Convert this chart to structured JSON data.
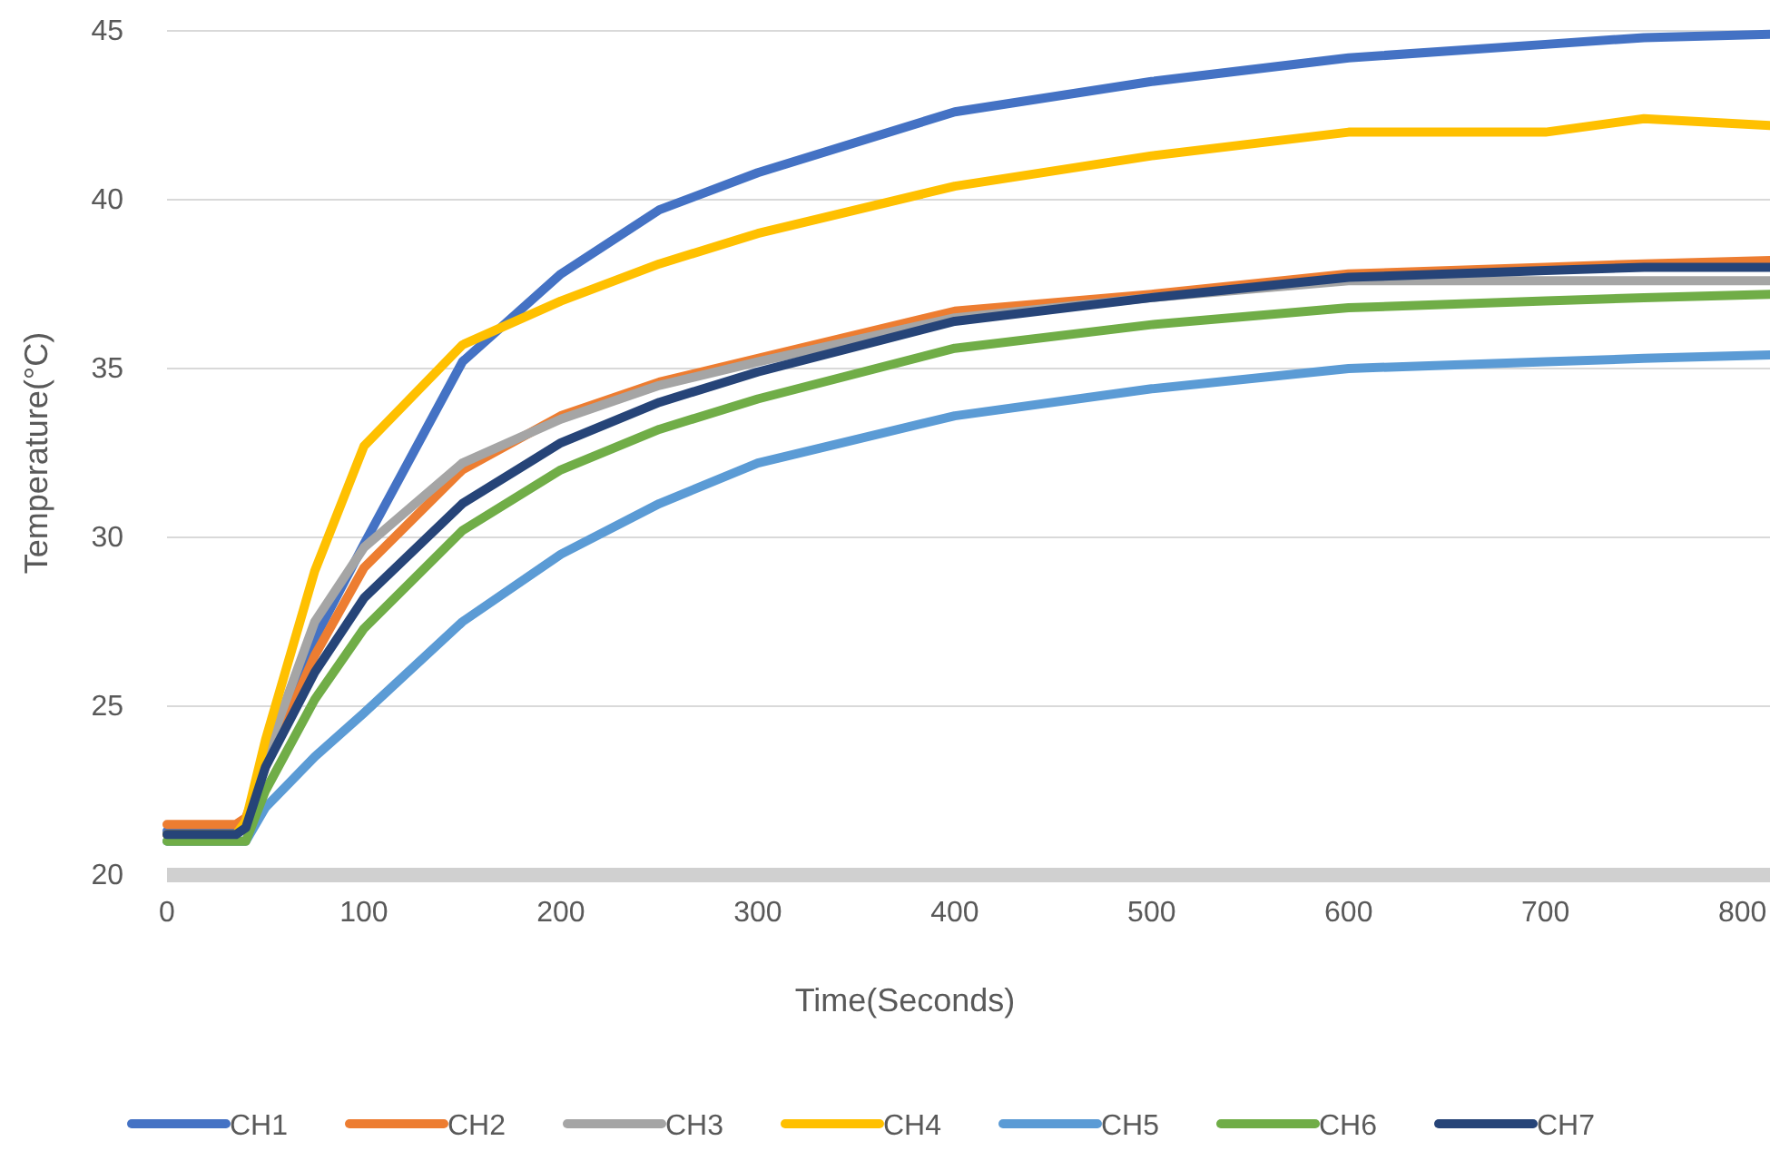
{
  "chart_data": {
    "type": "line",
    "xlabel": "Time(Seconds)",
    "ylabel": "Temperature(°C)",
    "x": [
      0,
      35,
      40,
      50,
      75,
      100,
      150,
      200,
      250,
      300,
      400,
      500,
      600,
      700,
      750,
      814
    ],
    "xlim": [
      0,
      814
    ],
    "xticks": [
      0,
      100,
      200,
      300,
      400,
      500,
      600,
      700,
      800
    ],
    "ylim": [
      20,
      45
    ],
    "yticks": [
      20,
      25,
      30,
      35,
      40,
      45
    ],
    "grid": "y",
    "legend": "bottom",
    "marker": "none",
    "line_style": "solid",
    "series": [
      {
        "name": "CH1",
        "color": "#4472c4",
        "values": [
          21.3,
          21.3,
          21.6,
          23.5,
          27.0,
          29.8,
          35.2,
          37.8,
          39.7,
          40.8,
          42.6,
          43.5,
          44.2,
          44.6,
          44.8,
          44.9
        ]
      },
      {
        "name": "CH2",
        "color": "#ed7d31",
        "values": [
          21.5,
          21.5,
          21.7,
          23.2,
          26.5,
          29.1,
          32.0,
          33.6,
          34.6,
          35.3,
          36.7,
          37.2,
          37.8,
          38.0,
          38.1,
          38.2
        ]
      },
      {
        "name": "CH3",
        "color": "#a5a5a5",
        "values": [
          21.2,
          21.2,
          null,
          23.5,
          27.5,
          29.7,
          32.2,
          33.5,
          34.5,
          35.2,
          36.5,
          37.1,
          37.6,
          37.6,
          37.6,
          37.6
        ]
      },
      {
        "name": "CH4",
        "color": "#ffc000",
        "values": [
          21.2,
          21.2,
          21.6,
          24.0,
          29.0,
          32.7,
          35.7,
          37.0,
          38.1,
          39.0,
          40.4,
          41.3,
          42.0,
          42.0,
          42.4,
          42.2
        ]
      },
      {
        "name": "CH5",
        "color": "#5b9bd5",
        "values": [
          21.0,
          21.0,
          21.0,
          22.0,
          23.5,
          24.8,
          27.5,
          29.5,
          31.0,
          32.2,
          33.6,
          34.4,
          35.0,
          35.2,
          35.3,
          35.4
        ]
      },
      {
        "name": "CH6",
        "color": "#70ad47",
        "values": [
          21.0,
          21.0,
          21.0,
          22.5,
          25.2,
          27.3,
          30.2,
          32.0,
          33.2,
          34.1,
          35.6,
          36.3,
          36.8,
          37.0,
          37.1,
          37.2
        ]
      },
      {
        "name": "CH7",
        "color": "#264478",
        "values": [
          21.2,
          21.2,
          21.4,
          23.2,
          26.0,
          28.2,
          31.0,
          32.8,
          34.0,
          34.9,
          36.4,
          37.1,
          37.7,
          37.9,
          38.0,
          38.0
        ]
      }
    ]
  }
}
